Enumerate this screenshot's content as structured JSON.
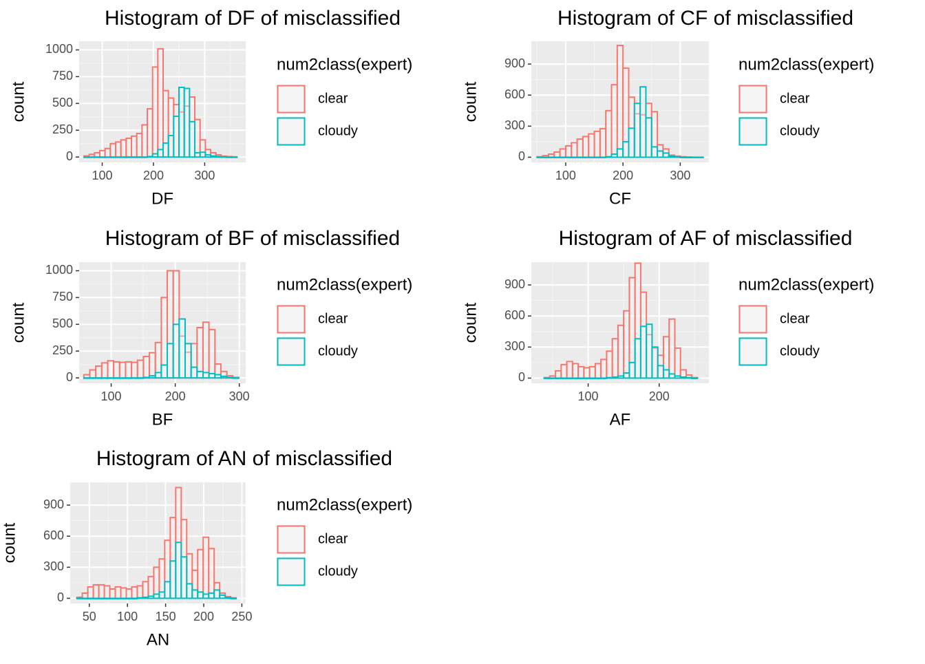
{
  "legend": {
    "title": "num2class(expert)",
    "items": [
      {
        "label": "clear",
        "color": "#F8766D"
      },
      {
        "label": "cloudy",
        "color": "#00BFC4"
      }
    ]
  },
  "chart_data": [
    {
      "type": "histogram",
      "title": "Histogram of DF of misclassified",
      "xlabel": "DF",
      "ylabel": "count",
      "xlim": [
        55,
        380
      ],
      "ylim": [
        -50,
        1080
      ],
      "xticks": [
        100,
        200,
        300
      ],
      "yticks": [
        0,
        250,
        500,
        750,
        1000
      ],
      "binwidth": 10.3,
      "series": [
        {
          "name": "clear",
          "color": "#F8766D",
          "x": [
            69.5,
            79.8,
            90.1,
            100.4,
            110.7,
            121,
            131.3,
            141.6,
            151.9,
            162.2,
            172.5,
            182.8,
            193.1,
            203.4,
            213.7,
            224,
            234.3,
            244.6,
            254.9,
            265.2,
            275.5,
            285.8,
            296.1,
            306.4,
            316.7,
            327,
            337.3,
            347.6,
            357.9
          ],
          "values": [
            10,
            25,
            40,
            60,
            80,
            125,
            140,
            160,
            175,
            195,
            220,
            300,
            450,
            840,
            1010,
            620,
            550,
            490,
            420,
            475,
            560,
            350,
            160,
            70,
            40,
            20,
            8,
            5,
            2
          ]
        },
        {
          "name": "cloudy",
          "color": "#00BFC4",
          "x": [
            69.5,
            79.8,
            90.1,
            100.4,
            110.7,
            121,
            131.3,
            141.6,
            151.9,
            162.2,
            172.5,
            182.8,
            193.1,
            203.4,
            213.7,
            224,
            234.3,
            244.6,
            254.9,
            265.2,
            275.5,
            285.8,
            296.1,
            306.4,
            316.7,
            327,
            337.3,
            347.6,
            357.9
          ],
          "values": [
            0,
            0,
            0,
            0,
            0,
            0,
            0,
            0,
            0,
            0,
            0,
            0,
            5,
            30,
            70,
            130,
            200,
            380,
            650,
            640,
            330,
            40,
            45,
            20,
            10,
            5,
            2,
            0,
            0
          ]
        }
      ]
    },
    {
      "type": "histogram",
      "title": "Histogram of CF of misclassified",
      "xlabel": "CF",
      "ylabel": "count",
      "xlim": [
        40,
        350
      ],
      "ylim": [
        -50,
        1120
      ],
      "xticks": [
        100,
        200,
        300
      ],
      "yticks": [
        0,
        300,
        600,
        900
      ],
      "binwidth": 10,
      "series": [
        {
          "name": "clear",
          "color": "#F8766D",
          "x": [
            55,
            65,
            75,
            85,
            95,
            105,
            115,
            125,
            135,
            145,
            155,
            165,
            175,
            185,
            195,
            205,
            215,
            225,
            235,
            245,
            255,
            265,
            275,
            285,
            295,
            305,
            315,
            325,
            335
          ],
          "values": [
            5,
            15,
            30,
            50,
            80,
            110,
            140,
            175,
            200,
            225,
            250,
            275,
            450,
            700,
            1080,
            860,
            580,
            420,
            410,
            520,
            440,
            120,
            80,
            20,
            10,
            5,
            2,
            0,
            0
          ]
        },
        {
          "name": "cloudy",
          "color": "#00BFC4",
          "x": [
            55,
            65,
            75,
            85,
            95,
            105,
            115,
            125,
            135,
            145,
            155,
            165,
            175,
            185,
            195,
            205,
            215,
            225,
            235,
            245,
            255,
            265,
            275,
            285,
            295,
            305,
            315,
            325,
            335
          ],
          "values": [
            0,
            0,
            0,
            0,
            0,
            0,
            0,
            0,
            0,
            0,
            0,
            0,
            5,
            30,
            80,
            150,
            280,
            520,
            680,
            380,
            100,
            60,
            40,
            10,
            5,
            0,
            0,
            0,
            0
          ]
        }
      ]
    },
    {
      "type": "histogram",
      "title": "Histogram of BF of misclassified",
      "xlabel": "BF",
      "ylabel": "count",
      "xlim": [
        50,
        310
      ],
      "ylim": [
        -50,
        1080
      ],
      "xticks": [
        100,
        200,
        300
      ],
      "yticks": [
        0,
        250,
        500,
        750,
        1000
      ],
      "binwidth": 9.3,
      "series": [
        {
          "name": "clear",
          "color": "#F8766D",
          "x": [
            62,
            71.3,
            80.6,
            89.9,
            99.2,
            108.5,
            117.8,
            127.1,
            136.4,
            145.7,
            155,
            164.3,
            173.6,
            182.9,
            192.2,
            201.5,
            210.8,
            220.1,
            229.4,
            238.7,
            248,
            257.3,
            266.6,
            275.9,
            285.2,
            294.5
          ],
          "values": [
            30,
            75,
            110,
            140,
            160,
            150,
            145,
            150,
            145,
            165,
            200,
            235,
            330,
            750,
            1000,
            1000,
            390,
            240,
            320,
            470,
            520,
            450,
            130,
            60,
            20,
            5
          ]
        },
        {
          "name": "cloudy",
          "color": "#00BFC4",
          "x": [
            62,
            71.3,
            80.6,
            89.9,
            99.2,
            108.5,
            117.8,
            127.1,
            136.4,
            145.7,
            155,
            164.3,
            173.6,
            182.9,
            192.2,
            201.5,
            210.8,
            220.1,
            229.4,
            238.7,
            248,
            257.3,
            266.6,
            275.9,
            285.2,
            294.5
          ],
          "values": [
            0,
            0,
            0,
            0,
            0,
            0,
            0,
            0,
            0,
            0,
            5,
            20,
            50,
            120,
            320,
            500,
            550,
            320,
            100,
            60,
            50,
            40,
            30,
            15,
            5,
            0
          ]
        }
      ]
    },
    {
      "type": "histogram",
      "title": "Histogram of AF of misclassified",
      "xlabel": "AF",
      "ylabel": "count",
      "xlim": [
        20,
        270
      ],
      "ylim": [
        -50,
        1120
      ],
      "xticks": [
        100,
        200
      ],
      "yticks": [
        0,
        300,
        600,
        900
      ],
      "binwidth": 8,
      "series": [
        {
          "name": "clear",
          "color": "#F8766D",
          "x": [
            42,
            50,
            58,
            66,
            74,
            82,
            90,
            98,
            106,
            114,
            122,
            130,
            138,
            146,
            154,
            162,
            170,
            178,
            186,
            194,
            202,
            210,
            218,
            226,
            234,
            242,
            250
          ],
          "values": [
            5,
            20,
            70,
            130,
            160,
            140,
            110,
            100,
            110,
            140,
            180,
            260,
            380,
            510,
            650,
            970,
            1110,
            830,
            420,
            290,
            220,
            400,
            570,
            290,
            80,
            30,
            5
          ]
        },
        {
          "name": "cloudy",
          "color": "#00BFC4",
          "x": [
            42,
            50,
            58,
            66,
            74,
            82,
            90,
            98,
            106,
            114,
            122,
            130,
            138,
            146,
            154,
            162,
            170,
            178,
            186,
            194,
            202,
            210,
            218,
            226,
            234,
            242,
            250
          ],
          "values": [
            0,
            0,
            0,
            0,
            0,
            0,
            0,
            0,
            0,
            0,
            0,
            5,
            10,
            20,
            50,
            150,
            380,
            500,
            520,
            300,
            120,
            80,
            40,
            20,
            10,
            5,
            0
          ]
        }
      ]
    },
    {
      "type": "histogram",
      "title": "Histogram of AN of misclassified",
      "xlabel": "AN",
      "ylabel": "count",
      "xlim": [
        25,
        255
      ],
      "ylim": [
        -50,
        1120
      ],
      "xticks": [
        50,
        100,
        150,
        200,
        250
      ],
      "yticks": [
        0,
        300,
        600,
        900
      ],
      "binwidth": 7.2,
      "series": [
        {
          "name": "clear",
          "color": "#F8766D",
          "x": [
            37.3,
            44.5,
            51.7,
            58.9,
            66.1,
            73.3,
            80.5,
            87.7,
            94.9,
            102.1,
            109.3,
            116.5,
            123.7,
            130.9,
            138.1,
            145.3,
            152.5,
            159.7,
            166.9,
            174.1,
            181.3,
            188.5,
            195.7,
            202.9,
            210.1,
            217.3,
            224.5,
            231.7,
            238.9
          ],
          "values": [
            10,
            50,
            110,
            130,
            130,
            120,
            90,
            110,
            100,
            90,
            110,
            120,
            160,
            210,
            300,
            380,
            560,
            780,
            1070,
            760,
            430,
            270,
            470,
            590,
            480,
            150,
            50,
            15,
            5
          ]
        },
        {
          "name": "cloudy",
          "color": "#00BFC4",
          "x": [
            37.3,
            44.5,
            51.7,
            58.9,
            66.1,
            73.3,
            80.5,
            87.7,
            94.9,
            102.1,
            109.3,
            116.5,
            123.7,
            130.9,
            138.1,
            145.3,
            152.5,
            159.7,
            166.9,
            174.1,
            181.3,
            188.5,
            195.7,
            202.9,
            210.1,
            217.3,
            224.5,
            231.7,
            238.9
          ],
          "values": [
            0,
            0,
            0,
            0,
            0,
            0,
            0,
            0,
            0,
            0,
            0,
            5,
            10,
            20,
            40,
            60,
            160,
            360,
            540,
            400,
            140,
            80,
            60,
            40,
            50,
            80,
            30,
            10,
            0
          ]
        }
      ]
    }
  ]
}
